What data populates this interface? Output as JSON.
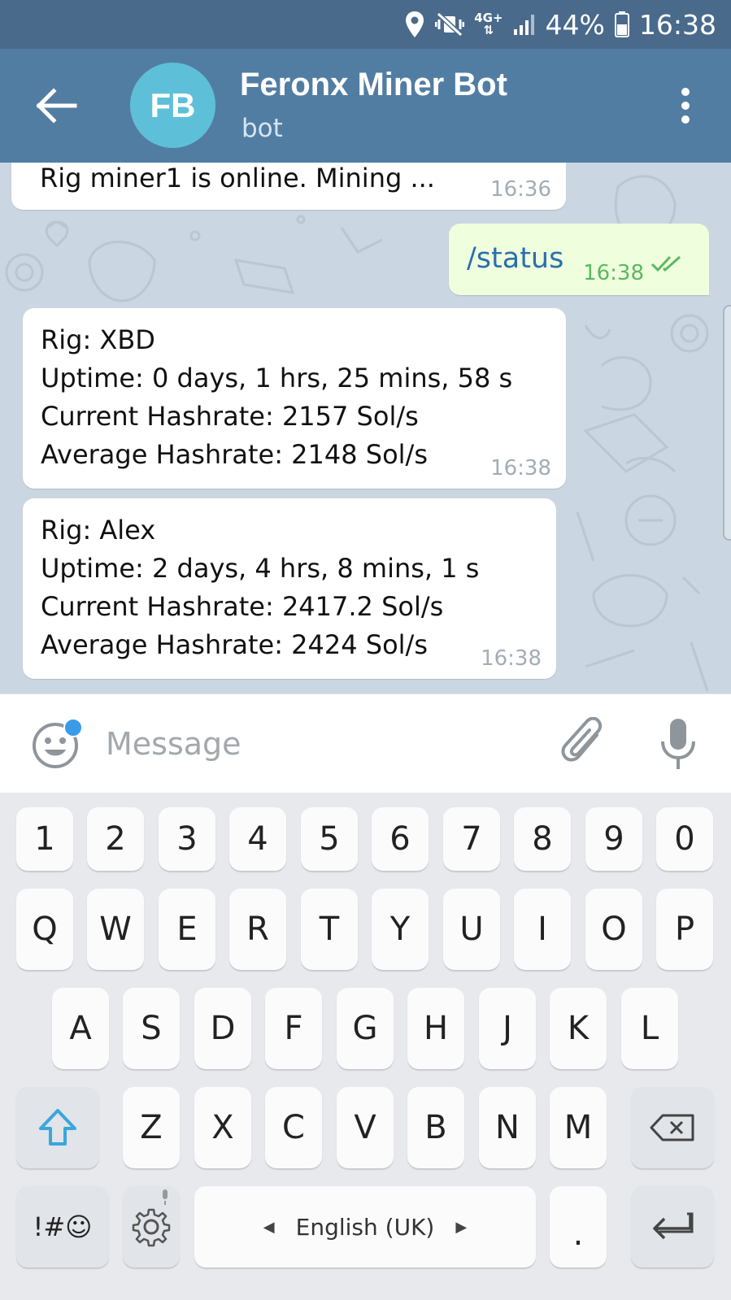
{
  "status_bar": {
    "battery": "44%",
    "time": "16:38",
    "network": "4G+"
  },
  "header": {
    "avatar_initials": "FB",
    "title": "Feronx Miner Bot",
    "subtitle": "bot"
  },
  "messages": [
    {
      "from": "bot",
      "lines": [
        "Rig miner1 is online. Mining ..."
      ],
      "time": "16:36"
    },
    {
      "from": "me",
      "lines": [
        "/status"
      ],
      "time": "16:38",
      "read": true
    },
    {
      "from": "bot",
      "lines": [
        "Rig: XBD",
        "Uptime: 0 days, 1 hrs, 25 mins, 58 s",
        "Current Hashrate: 2157 Sol/s",
        "Average Hashrate: 2148 Sol/s"
      ],
      "time": "16:38"
    },
    {
      "from": "bot",
      "lines": [
        "Rig: Alex",
        "Uptime: 2 days, 4 hrs, 8 mins, 1 s",
        "Current Hashrate: 2417.2 Sol/s",
        "Average Hashrate: 2424 Sol/s"
      ],
      "time": "16:38"
    }
  ],
  "input": {
    "placeholder": "Message"
  },
  "keyboard": {
    "row_numbers": [
      "1",
      "2",
      "3",
      "4",
      "5",
      "6",
      "7",
      "8",
      "9",
      "0"
    ],
    "row_top": [
      "Q",
      "W",
      "E",
      "R",
      "T",
      "Y",
      "U",
      "I",
      "O",
      "P"
    ],
    "row_mid": [
      "A",
      "S",
      "D",
      "F",
      "G",
      "H",
      "J",
      "K",
      "L"
    ],
    "row_bottom": [
      "Z",
      "X",
      "C",
      "V",
      "B",
      "N",
      "M"
    ],
    "symbols_label": "!#☺",
    "space_label": "English (UK)",
    "period_label": "."
  },
  "colors": {
    "header": "#527da3",
    "status_bar": "#4a6a8c",
    "outgoing_bubble": "#efffde",
    "accent": "#3a9be8"
  }
}
